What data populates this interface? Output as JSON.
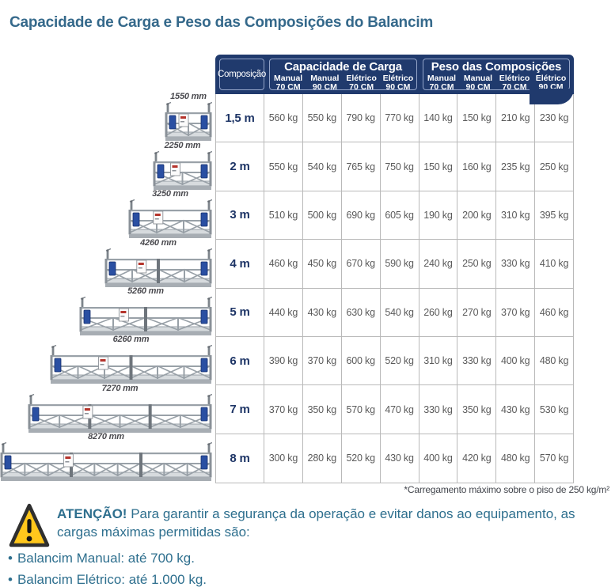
{
  "page_title": "Capacidade de Carga e Peso das Composições do Balancim",
  "table": {
    "composition_header": "Composição",
    "groups": [
      {
        "title": "Capacidade de Carga",
        "columns": [
          {
            "line1": "Manual",
            "line2": "70 CM"
          },
          {
            "line1": "Manual",
            "line2": "90 CM"
          },
          {
            "line1": "Elétrico",
            "line2": "70 CM"
          },
          {
            "line1": "Elétrico",
            "line2": "90 CM"
          }
        ]
      },
      {
        "title": "Peso das Composições",
        "columns": [
          {
            "line1": "Manual",
            "line2": "70 CM"
          },
          {
            "line1": "Manual",
            "line2": "90 CM"
          },
          {
            "line1": "Elétrico",
            "line2": "70 CM"
          },
          {
            "line1": "Elétrico",
            "line2": "90 CM"
          }
        ]
      }
    ],
    "rows": [
      {
        "composition": "1,5 m",
        "dimension": "1550 mm",
        "capacity": [
          "560 kg",
          "550 kg",
          "790 kg",
          "770 kg"
        ],
        "weight": [
          "140 kg",
          "150 kg",
          "210 kg",
          "230 kg"
        ]
      },
      {
        "composition": "2 m",
        "dimension": "2250 mm",
        "capacity": [
          "550 kg",
          "540 kg",
          "765 kg",
          "750 kg"
        ],
        "weight": [
          "150 kg",
          "160 kg",
          "235 kg",
          "250 kg"
        ]
      },
      {
        "composition": "3 m",
        "dimension": "3250 mm",
        "capacity": [
          "510 kg",
          "500 kg",
          "690 kg",
          "605 kg"
        ],
        "weight": [
          "190 kg",
          "200 kg",
          "310 kg",
          "395 kg"
        ]
      },
      {
        "composition": "4 m",
        "dimension": "4260 mm",
        "capacity": [
          "460 kg",
          "450 kg",
          "670 kg",
          "590 kg"
        ],
        "weight": [
          "240 kg",
          "250 kg",
          "330 kg",
          "410 kg"
        ]
      },
      {
        "composition": "5 m",
        "dimension": "5260 mm",
        "capacity": [
          "440 kg",
          "430 kg",
          "630 kg",
          "540 kg"
        ],
        "weight": [
          "260 kg",
          "270 kg",
          "370 kg",
          "460 kg"
        ]
      },
      {
        "composition": "6 m",
        "dimension": "6260 mm",
        "capacity": [
          "390 kg",
          "370 kg",
          "600 kg",
          "520 kg"
        ],
        "weight": [
          "310 kg",
          "330 kg",
          "400 kg",
          "480 kg"
        ]
      },
      {
        "composition": "7 m",
        "dimension": "7270 mm",
        "capacity": [
          "370 kg",
          "350 kg",
          "570 kg",
          "470 kg"
        ],
        "weight": [
          "330 kg",
          "350 kg",
          "430 kg",
          "530 kg"
        ]
      },
      {
        "composition": "8 m",
        "dimension": "8270 mm",
        "capacity": [
          "300 kg",
          "280 kg",
          "520 kg",
          "430 kg"
        ],
        "weight": [
          "400 kg",
          "420 kg",
          "480 kg",
          "570 kg"
        ]
      }
    ],
    "footnote": "*Carregamento máximo sobre o piso de 250 kg/m²"
  },
  "warning": {
    "title": "ATENÇÃO!",
    "text": "Para garantir a segurança da operação e evitar danos ao equipamento, as cargas máximas permitidas são:",
    "bullets": [
      "Balancim Manual: até 700 kg.",
      "Balancim Elétrico: até 1.000 kg."
    ]
  },
  "colors": {
    "header_navy": "#203a6d",
    "header_box_border": "#94a5c9",
    "title_teal": "#35698b",
    "warning_teal": "#2e6f8e",
    "row_label_navy": "#1e3566",
    "cell_gray": "#5a5a5a",
    "grid_line": "#b9b9b9",
    "warning_yellow": "#ffc71c",
    "motor_blue": "#2a4fa2"
  },
  "icons": {
    "warning_triangle": "warning-triangle-icon"
  }
}
